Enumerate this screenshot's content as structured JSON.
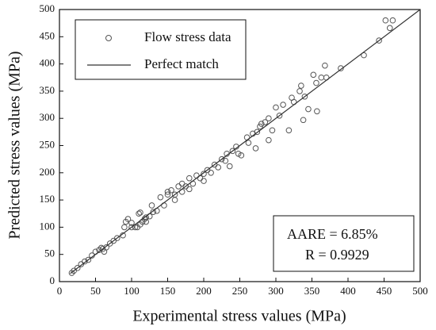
{
  "chart_data": {
    "type": "scatter",
    "x_label": "Experimental stress values (MPa)",
    "y_label": "Predicted stress values (MPa)",
    "xlim": [
      0,
      500
    ],
    "ylim": [
      0,
      500
    ],
    "xticks": [
      0,
      50,
      100,
      150,
      200,
      250,
      300,
      350,
      400,
      450,
      500
    ],
    "yticks": [
      0,
      50,
      100,
      150,
      200,
      250,
      300,
      350,
      400,
      450,
      500
    ],
    "series": [
      {
        "name": "Flow stress data",
        "type": "scatter",
        "color": "#555555",
        "x": [
          452,
          462,
          458,
          443,
          422,
          390,
          368,
          370,
          363,
          352,
          356,
          345,
          357,
          338,
          318,
          335,
          333,
          322,
          300,
          290,
          285,
          280,
          274,
          272,
          290,
          260,
          252,
          248,
          240,
          232,
          230,
          236,
          210,
          220,
          200,
          190,
          180,
          170,
          165,
          160,
          150,
          140,
          135,
          130,
          125,
          120,
          115,
          110,
          108,
          112,
          100,
          95,
          92,
          90,
          88,
          80,
          75,
          70,
          65,
          60,
          55,
          50,
          45,
          40,
          35,
          30,
          25,
          20,
          17,
          150,
          155,
          175,
          185,
          195,
          205,
          215,
          225,
          245,
          262,
          268,
          278,
          295,
          305,
          310,
          325,
          340,
          200,
          160,
          145,
          170,
          180,
          120,
          105,
          128,
          112,
          118,
          62,
          58,
          100
        ],
        "y": [
          480,
          480,
          466,
          443,
          416,
          392,
          397,
          375,
          375,
          380,
          365,
          317,
          313,
          297,
          278,
          360,
          350,
          338,
          320,
          300,
          293,
          290,
          275,
          245,
          260,
          265,
          232,
          235,
          240,
          235,
          222,
          212,
          200,
          210,
          198,
          195,
          190,
          180,
          175,
          160,
          160,
          155,
          130,
          128,
          120,
          118,
          110,
          125,
          100,
          105,
          108,
          115,
          110,
          100,
          85,
          80,
          75,
          70,
          63,
          60,
          58,
          55,
          48,
          40,
          37,
          32,
          25,
          20,
          16,
          165,
          168,
          175,
          180,
          190,
          205,
          215,
          225,
          248,
          255,
          272,
          285,
          278,
          305,
          325,
          330,
          340,
          185,
          150,
          140,
          165,
          170,
          110,
          100,
          140,
          127,
          115,
          55,
          62,
          100
        ]
      },
      {
        "name": "Perfect match",
        "type": "line",
        "color": "#333333",
        "x": [
          15,
          500
        ],
        "y": [
          15,
          500
        ]
      }
    ],
    "annotations": [
      "AARE = 6.85%",
      "R = 0.9929"
    ]
  }
}
